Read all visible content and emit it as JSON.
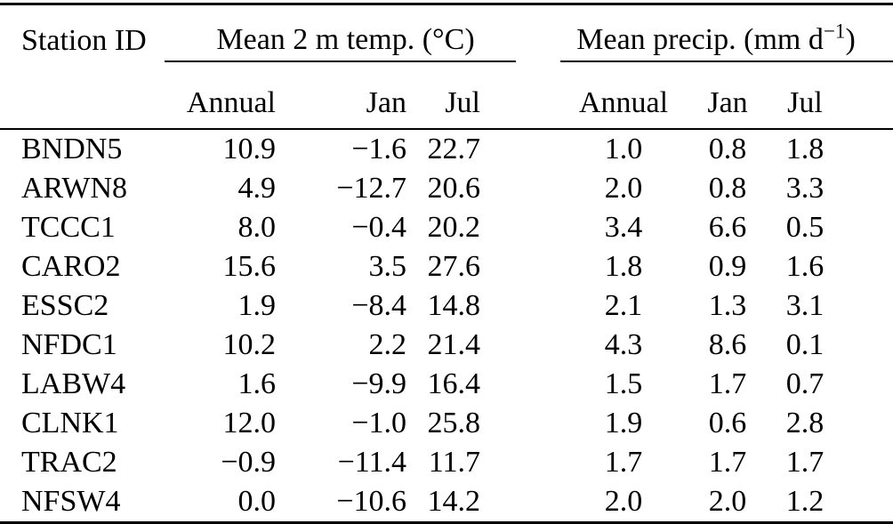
{
  "colors": {
    "background": "#ffffff",
    "text": "#000000",
    "rule": "#000000"
  },
  "table": {
    "station_col_header": "Station ID",
    "temp_group": {
      "label": "Mean 2 m temp. (°C)",
      "columns": [
        "Annual",
        "Jan",
        "Jul"
      ]
    },
    "precip_group": {
      "label_prefix": "Mean precip. (mm d",
      "label_exponent": "−1",
      "label_suffix": ")",
      "columns": [
        "Annual",
        "Jan",
        "Jul"
      ]
    },
    "rows": [
      {
        "station": "BNDN5",
        "temp": [
          "10.9",
          "−1.6",
          "22.7"
        ],
        "precip": [
          "1.0",
          "0.8",
          "1.8"
        ]
      },
      {
        "station": "ARWN8",
        "temp": [
          "4.9",
          "−12.7",
          "20.6"
        ],
        "precip": [
          "2.0",
          "0.8",
          "3.3"
        ]
      },
      {
        "station": "TCCC1",
        "temp": [
          "8.0",
          "−0.4",
          "20.2"
        ],
        "precip": [
          "3.4",
          "6.6",
          "0.5"
        ]
      },
      {
        "station": "CARO2",
        "temp": [
          "15.6",
          "3.5",
          "27.6"
        ],
        "precip": [
          "1.8",
          "0.9",
          "1.6"
        ]
      },
      {
        "station": "ESSC2",
        "temp": [
          "1.9",
          "−8.4",
          "14.8"
        ],
        "precip": [
          "2.1",
          "1.3",
          "3.1"
        ]
      },
      {
        "station": "NFDC1",
        "temp": [
          "10.2",
          "2.2",
          "21.4"
        ],
        "precip": [
          "4.3",
          "8.6",
          "0.1"
        ]
      },
      {
        "station": "LABW4",
        "temp": [
          "1.6",
          "−9.9",
          "16.4"
        ],
        "precip": [
          "1.5",
          "1.7",
          "0.7"
        ]
      },
      {
        "station": "CLNK1",
        "temp": [
          "12.0",
          "−1.0",
          "25.8"
        ],
        "precip": [
          "1.9",
          "0.6",
          "2.8"
        ]
      },
      {
        "station": "TRAC2",
        "temp": [
          "−0.9",
          "−11.4",
          "11.7"
        ],
        "precip": [
          "1.7",
          "1.7",
          "1.7"
        ]
      },
      {
        "station": "NFSW4",
        "temp": [
          "0.0",
          "−10.6",
          "14.2"
        ],
        "precip": [
          "2.0",
          "2.0",
          "1.2"
        ]
      }
    ]
  }
}
